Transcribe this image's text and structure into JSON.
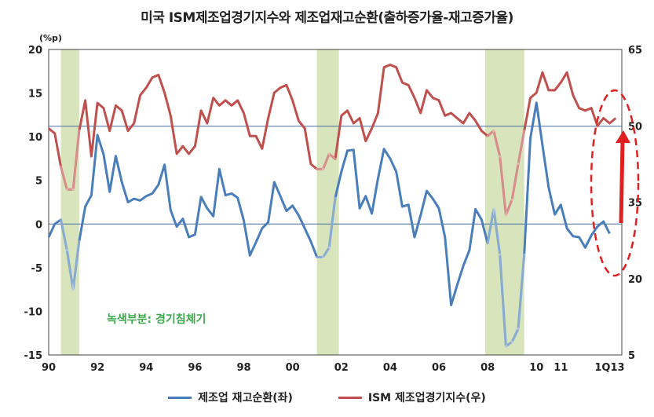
{
  "chart_data": {
    "type": "line",
    "title": "미국 ISM제조업경기지수와 제조업재고순환(출하증가율-재고증가율)",
    "left_axis_unit": "(%p)",
    "left_axis": {
      "range": [
        -15,
        20
      ],
      "ticks": [
        "20",
        "15",
        "10",
        "5",
        "0",
        "-5",
        "-10",
        "-15"
      ]
    },
    "right_axis": {
      "range": [
        5,
        65
      ],
      "ticks": [
        "65",
        "50",
        "35",
        "20",
        "5"
      ]
    },
    "x_range": [
      1990,
      2013.5
    ],
    "x_ticks": [
      {
        "x": 1990,
        "label": "90"
      },
      {
        "x": 1992,
        "label": "92"
      },
      {
        "x": 1994,
        "label": "94"
      },
      {
        "x": 1996,
        "label": "96"
      },
      {
        "x": 1998,
        "label": "98"
      },
      {
        "x": 2000,
        "label": "00"
      },
      {
        "x": 2002,
        "label": "02"
      },
      {
        "x": 2004,
        "label": "04"
      },
      {
        "x": 2006,
        "label": "06"
      },
      {
        "x": 2008,
        "label": "08"
      },
      {
        "x": 2010,
        "label": "10"
      },
      {
        "x": 2011,
        "label": "11"
      },
      {
        "x": 2013,
        "label": "1Q13"
      }
    ],
    "recessions": [
      [
        1990.5,
        1991.25
      ],
      [
        2001.0,
        2001.9
      ],
      [
        2007.9,
        2009.5
      ]
    ],
    "recession_note": "녹색부분: 경기침체기",
    "reference_line": 11.2,
    "series": [
      {
        "name": "제조업 재고순환(좌)",
        "axis": "left",
        "color": "#4a7ebb",
        "points": [
          [
            1990.0,
            -1.5
          ],
          [
            1990.25,
            0.0
          ],
          [
            1990.5,
            0.5
          ],
          [
            1990.75,
            -3.0
          ],
          [
            1991.0,
            -7.5
          ],
          [
            1991.25,
            -2.0
          ],
          [
            1991.5,
            2.0
          ],
          [
            1991.75,
            3.3
          ],
          [
            1992.0,
            10.2
          ],
          [
            1992.25,
            8.0
          ],
          [
            1992.5,
            3.7
          ],
          [
            1992.75,
            7.8
          ],
          [
            1993.0,
            4.8
          ],
          [
            1993.25,
            2.5
          ],
          [
            1993.5,
            2.9
          ],
          [
            1993.75,
            2.7
          ],
          [
            1994.0,
            3.2
          ],
          [
            1994.25,
            3.5
          ],
          [
            1994.5,
            4.5
          ],
          [
            1994.75,
            6.8
          ],
          [
            1995.0,
            1.6
          ],
          [
            1995.25,
            -0.3
          ],
          [
            1995.5,
            0.6
          ],
          [
            1995.75,
            -1.5
          ],
          [
            1996.0,
            -1.2
          ],
          [
            1996.25,
            3.1
          ],
          [
            1996.5,
            1.8
          ],
          [
            1996.75,
            0.9
          ],
          [
            1997.0,
            6.3
          ],
          [
            1997.25,
            3.3
          ],
          [
            1997.5,
            3.5
          ],
          [
            1997.75,
            3.0
          ],
          [
            1998.0,
            0.4
          ],
          [
            1998.25,
            -3.6
          ],
          [
            1998.5,
            -2.1
          ],
          [
            1998.75,
            -0.5
          ],
          [
            1999.0,
            0.2
          ],
          [
            1999.25,
            4.8
          ],
          [
            1999.5,
            3.2
          ],
          [
            1999.75,
            1.5
          ],
          [
            2000.0,
            2.1
          ],
          [
            2000.25,
            1.0
          ],
          [
            2000.5,
            -0.5
          ],
          [
            2000.75,
            -2.0
          ],
          [
            2001.0,
            -3.8
          ],
          [
            2001.25,
            -3.8
          ],
          [
            2001.5,
            -2.7
          ],
          [
            2001.75,
            3.0
          ],
          [
            2002.0,
            6.0
          ],
          [
            2002.25,
            8.4
          ],
          [
            2002.5,
            8.5
          ],
          [
            2002.75,
            1.8
          ],
          [
            2003.0,
            3.2
          ],
          [
            2003.25,
            1.2
          ],
          [
            2003.5,
            5.2
          ],
          [
            2003.75,
            8.6
          ],
          [
            2004.0,
            7.5
          ],
          [
            2004.25,
            6.0
          ],
          [
            2004.5,
            2.0
          ],
          [
            2004.75,
            2.2
          ],
          [
            2005.0,
            -1.5
          ],
          [
            2005.25,
            1.0
          ],
          [
            2005.5,
            3.8
          ],
          [
            2005.75,
            2.9
          ],
          [
            2006.0,
            1.8
          ],
          [
            2006.25,
            -1.5
          ],
          [
            2006.5,
            -9.3
          ],
          [
            2006.75,
            -7.0
          ],
          [
            2007.0,
            -4.8
          ],
          [
            2007.25,
            -3.0
          ],
          [
            2007.5,
            1.7
          ],
          [
            2007.75,
            0.5
          ],
          [
            2008.0,
            -2.2
          ],
          [
            2008.25,
            1.7
          ],
          [
            2008.5,
            -3.5
          ],
          [
            2008.75,
            -14.0
          ],
          [
            2009.0,
            -13.5
          ],
          [
            2009.25,
            -12.0
          ],
          [
            2009.5,
            -3.5
          ],
          [
            2009.75,
            9.8
          ],
          [
            2010.0,
            13.9
          ],
          [
            2010.25,
            9.0
          ],
          [
            2010.5,
            4.2
          ],
          [
            2010.75,
            1.1
          ],
          [
            2011.0,
            2.2
          ],
          [
            2011.25,
            -0.5
          ],
          [
            2011.5,
            -1.4
          ],
          [
            2011.75,
            -1.5
          ],
          [
            2012.0,
            -2.7
          ],
          [
            2012.25,
            -1.3
          ],
          [
            2012.5,
            -0.3
          ],
          [
            2012.75,
            0.3
          ],
          [
            2013.0,
            -1.1
          ]
        ]
      },
      {
        "name": "ISM 제조업경기지수(우)",
        "axis": "right",
        "color": "#c0504d",
        "points": [
          [
            1990.0,
            49.5
          ],
          [
            1990.25,
            48.5
          ],
          [
            1990.5,
            42.0
          ],
          [
            1990.75,
            37.5
          ],
          [
            1991.0,
            37.5
          ],
          [
            1991.25,
            49.0
          ],
          [
            1991.5,
            55.0
          ],
          [
            1991.75,
            44.0
          ],
          [
            1992.0,
            54.5
          ],
          [
            1992.25,
            53.5
          ],
          [
            1992.5,
            49.0
          ],
          [
            1992.75,
            54.0
          ],
          [
            1993.0,
            53.0
          ],
          [
            1993.25,
            49.0
          ],
          [
            1993.5,
            50.5
          ],
          [
            1993.75,
            56.0
          ],
          [
            1994.0,
            57.5
          ],
          [
            1994.25,
            59.5
          ],
          [
            1994.5,
            60.0
          ],
          [
            1994.75,
            56.5
          ],
          [
            1995.0,
            52.0
          ],
          [
            1995.25,
            44.5
          ],
          [
            1995.5,
            46.0
          ],
          [
            1995.75,
            44.5
          ],
          [
            1996.0,
            46.0
          ],
          [
            1996.25,
            53.0
          ],
          [
            1996.5,
            50.5
          ],
          [
            1996.75,
            55.5
          ],
          [
            1997.0,
            54.0
          ],
          [
            1997.25,
            55.0
          ],
          [
            1997.5,
            54.0
          ],
          [
            1997.75,
            55.0
          ],
          [
            1998.0,
            52.5
          ],
          [
            1998.25,
            48.0
          ],
          [
            1998.5,
            48.0
          ],
          [
            1998.75,
            45.5
          ],
          [
            1999.0,
            51.5
          ],
          [
            1999.25,
            56.5
          ],
          [
            1999.5,
            57.5
          ],
          [
            1999.75,
            58.0
          ],
          [
            2000.0,
            55.0
          ],
          [
            2000.25,
            51.0
          ],
          [
            2000.5,
            49.5
          ],
          [
            2000.75,
            42.5
          ],
          [
            2001.0,
            41.5
          ],
          [
            2001.25,
            41.5
          ],
          [
            2001.5,
            44.5
          ],
          [
            2001.75,
            43.5
          ],
          [
            2002.0,
            52.0
          ],
          [
            2002.25,
            53.0
          ],
          [
            2002.5,
            50.5
          ],
          [
            2002.75,
            51.5
          ],
          [
            2003.0,
            47.0
          ],
          [
            2003.25,
            49.5
          ],
          [
            2003.5,
            52.5
          ],
          [
            2003.75,
            61.5
          ],
          [
            2004.0,
            62.0
          ],
          [
            2004.25,
            61.5
          ],
          [
            2004.5,
            58.5
          ],
          [
            2004.75,
            58.0
          ],
          [
            2005.0,
            55.5
          ],
          [
            2005.25,
            52.5
          ],
          [
            2005.5,
            57.0
          ],
          [
            2005.75,
            55.5
          ],
          [
            2006.0,
            55.0
          ],
          [
            2006.25,
            52.0
          ],
          [
            2006.5,
            52.5
          ],
          [
            2006.75,
            51.5
          ],
          [
            2007.0,
            50.5
          ],
          [
            2007.25,
            52.5
          ],
          [
            2007.5,
            51.0
          ],
          [
            2007.75,
            49.0
          ],
          [
            2008.0,
            48.0
          ],
          [
            2008.25,
            49.0
          ],
          [
            2008.5,
            44.0
          ],
          [
            2008.75,
            32.5
          ],
          [
            2009.0,
            35.5
          ],
          [
            2009.25,
            42.5
          ],
          [
            2009.5,
            49.0
          ],
          [
            2009.75,
            55.5
          ],
          [
            2010.0,
            56.5
          ],
          [
            2010.25,
            60.5
          ],
          [
            2010.5,
            57.0
          ],
          [
            2010.75,
            57.0
          ],
          [
            2011.0,
            58.5
          ],
          [
            2011.25,
            60.5
          ],
          [
            2011.5,
            56.0
          ],
          [
            2011.75,
            53.5
          ],
          [
            2012.0,
            53.0
          ],
          [
            2012.25,
            53.5
          ],
          [
            2012.5,
            50.0
          ],
          [
            2012.75,
            51.5
          ],
          [
            2013.0,
            50.5
          ],
          [
            2013.25,
            51.5
          ]
        ]
      }
    ]
  }
}
